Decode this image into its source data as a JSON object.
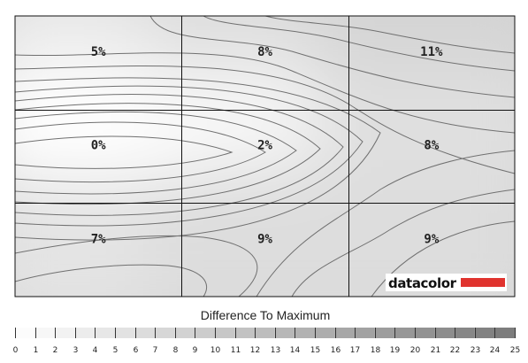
{
  "chart_data": {
    "type": "heatmap",
    "rows": 3,
    "cols": 3,
    "values": [
      [
        5,
        8,
        11
      ],
      [
        0,
        2,
        8
      ],
      [
        7,
        9,
        9
      ]
    ],
    "labels": [
      [
        "5%",
        "8%",
        "11%"
      ],
      [
        "0%",
        "2%",
        "8%"
      ],
      [
        "7%",
        "9%",
        "9%"
      ]
    ],
    "legend_title": "Difference To Maximum",
    "scale_ticks": [
      "0",
      "1",
      "2",
      "3",
      "4",
      "5",
      "6",
      "7",
      "8",
      "9",
      "10",
      "11",
      "12",
      "13",
      "14",
      "15",
      "16",
      "17",
      "18",
      "19",
      "20",
      "21",
      "22",
      "23",
      "24",
      "25"
    ],
    "scale_min": 0,
    "scale_max": 25,
    "color_low": "#ffffff",
    "color_high": "#7a7a7a",
    "contour_color": "#6e6e6e",
    "grid_color": "#111111"
  },
  "brand": {
    "name": "datacolor",
    "bar_color": "#e0332e"
  }
}
